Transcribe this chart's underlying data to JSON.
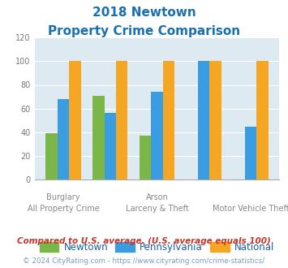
{
  "title_line1": "2018 Newtown",
  "title_line2": "Property Crime Comparison",
  "title_color": "#1a6faf",
  "newtown": [
    39,
    71,
    37,
    0,
    0
  ],
  "pennsylvania": [
    68,
    56,
    74,
    100,
    45
  ],
  "national": [
    100,
    100,
    100,
    100,
    100
  ],
  "bar_color_newtown": "#7ab648",
  "bar_color_pennsylvania": "#3b9de1",
  "bar_color_national": "#f5a623",
  "bg_color": "#deeaf1",
  "ylim": [
    0,
    120
  ],
  "yticks": [
    0,
    20,
    40,
    60,
    80,
    100,
    120
  ],
  "legend_labels": [
    "Newtown",
    "Pennsylvania",
    "National"
  ],
  "top_labels": [
    "Burglary",
    "",
    "Arson",
    "",
    ""
  ],
  "bottom_labels": [
    "All Property Crime",
    "",
    "Larceny & Theft",
    "",
    "Motor Vehicle Theft"
  ],
  "footnote1": "Compared to U.S. average. (U.S. average equals 100)",
  "footnote2": "© 2024 CityRating.com - https://www.cityrating.com/crime-statistics/",
  "footnote1_color": "#c0392b",
  "footnote2_color": "#7a9abf"
}
